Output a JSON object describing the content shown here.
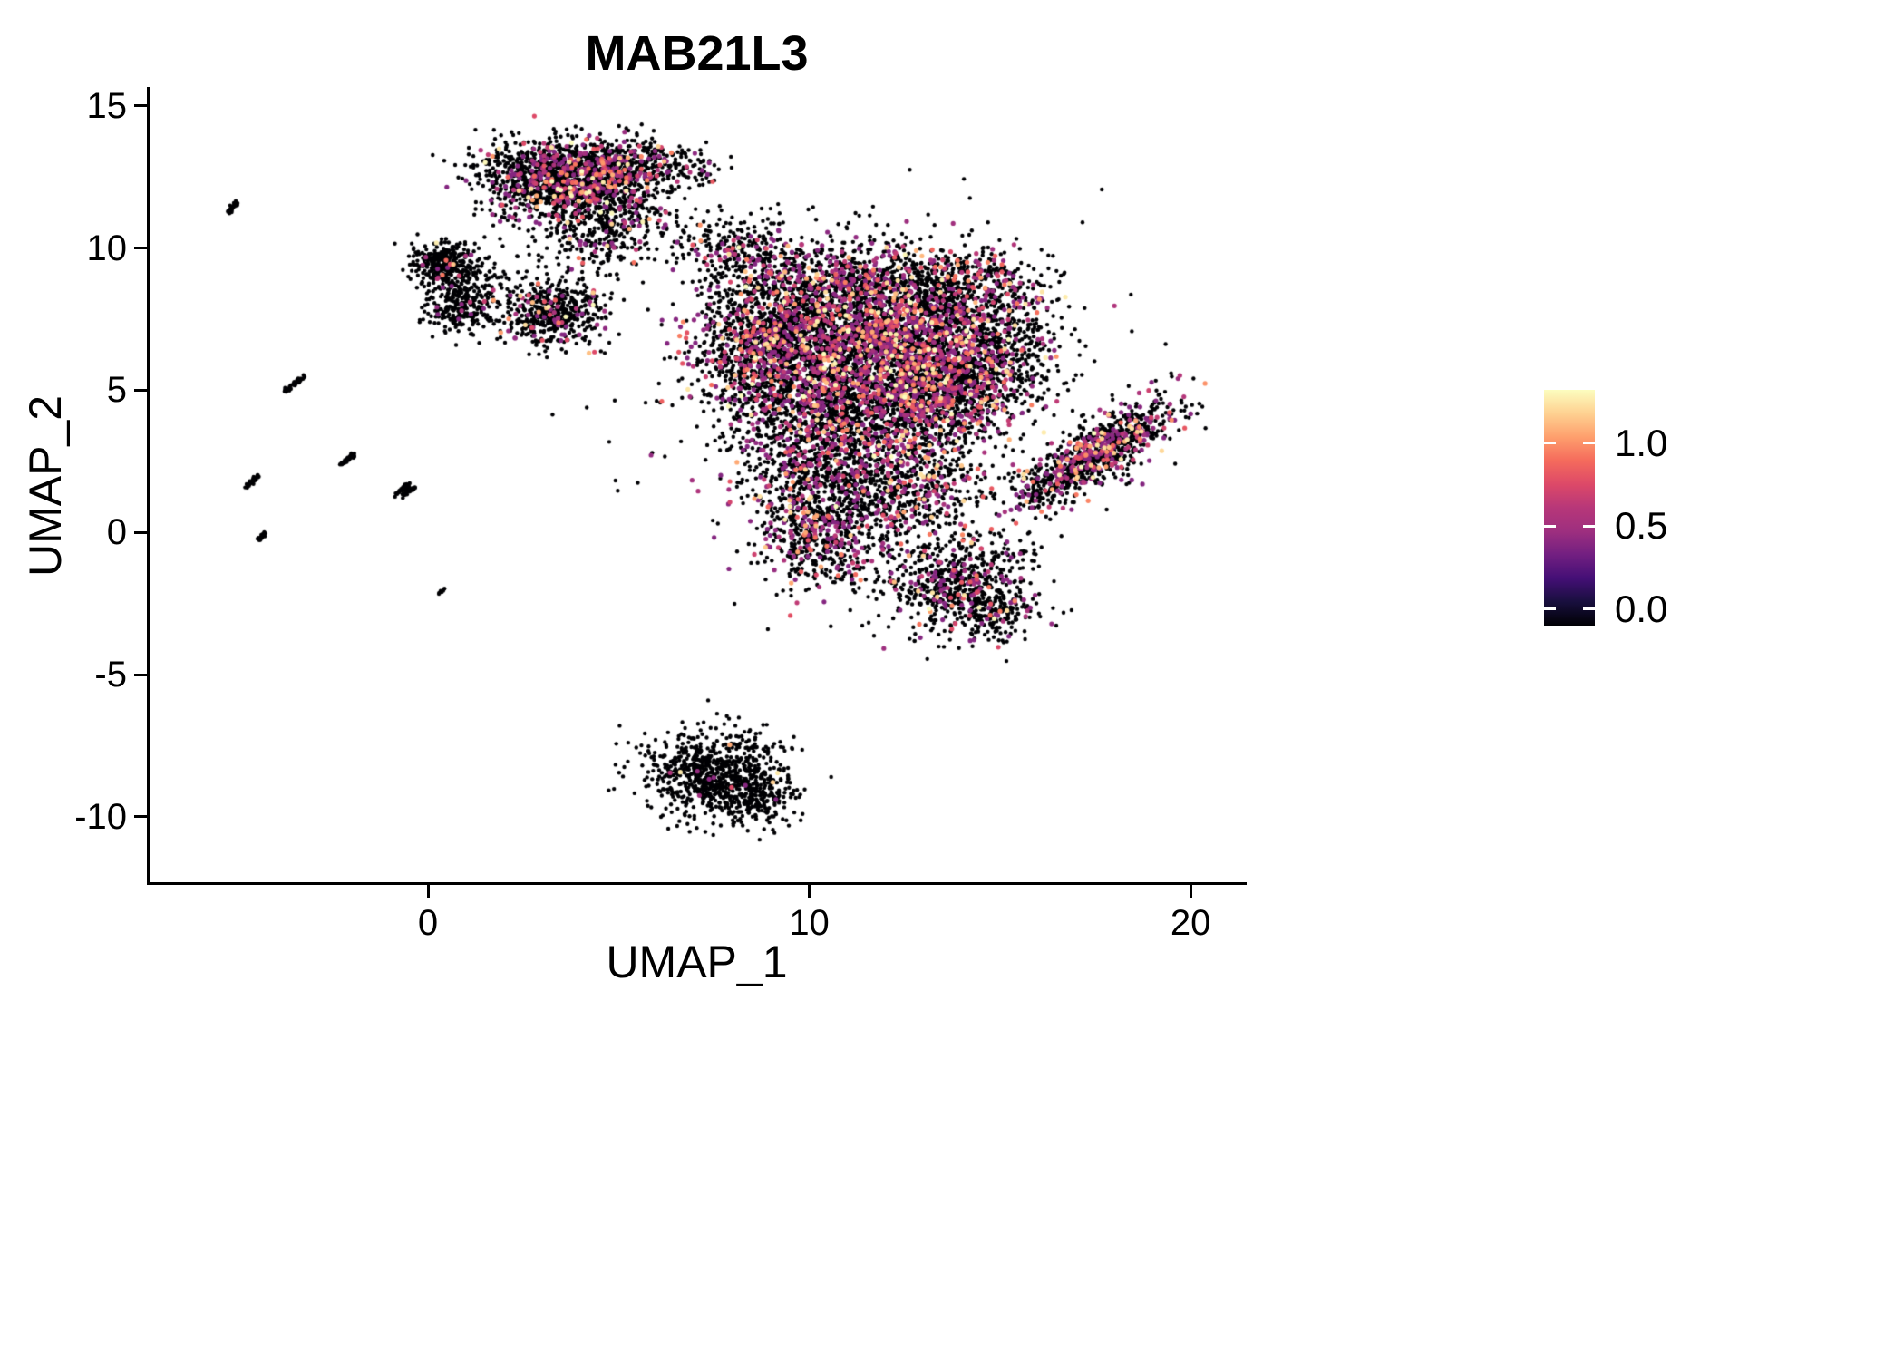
{
  "chart_data": {
    "type": "scatter",
    "title": "MAB21L3",
    "xlabel": "UMAP_1",
    "ylabel": "UMAP_2",
    "xlim": [
      -7.3,
      21.4
    ],
    "ylim": [
      -12.3,
      15.6
    ],
    "grid": false,
    "background": "#FFFFFF",
    "axis_color": "#000000",
    "x_ticks": [
      {
        "value": 0,
        "label": "0"
      },
      {
        "value": 10,
        "label": "10"
      },
      {
        "value": 20,
        "label": "20"
      }
    ],
    "y_ticks": [
      {
        "value": 15,
        "label": "15"
      },
      {
        "value": 10,
        "label": "10"
      },
      {
        "value": 5,
        "label": "5"
      },
      {
        "value": 0,
        "label": "0"
      },
      {
        "value": -5,
        "label": "-5"
      },
      {
        "value": -10,
        "label": "-10"
      }
    ],
    "colorbar": {
      "position": "right",
      "tick_labels": [
        "1.0",
        "0.5",
        "0.0"
      ],
      "tick_values": [
        1.0,
        0.5,
        0.0
      ],
      "value_range": [
        -0.1,
        1.32
      ],
      "gradient_low_to_high": [
        "#000004",
        "#180F3D",
        "#440F76",
        "#721F81",
        "#9E2F7F",
        "#B73779",
        "#DD4968",
        "#F56B5C",
        "#FE9F6D",
        "#FED191",
        "#FCFDBF"
      ]
    },
    "point_color_zero": "#000004",
    "point_radius_px": 2.2,
    "expr_point_radius_px": 2.6,
    "expr_value_base": 0.45,
    "expr_value_span": 0.9,
    "expr_value_power": 3,
    "clusters": [
      {
        "cx": 0.55,
        "cy": 9.3,
        "sx": 0.5,
        "sy": 0.45,
        "n": 280,
        "expr_frac": 0.04
      },
      {
        "cx": 0.9,
        "cy": 8.0,
        "sx": 0.5,
        "sy": 0.5,
        "n": 260,
        "expr_frac": 0.04
      },
      {
        "cx": 0.2,
        "cy": 9.6,
        "sx": 0.35,
        "sy": 0.25,
        "n": 80,
        "expr_frac": 0.06
      },
      {
        "cx": 2.1,
        "cy": 8.9,
        "sx": 0.5,
        "sy": 0.6,
        "n": 50,
        "expr_frac": 0.05
      },
      {
        "cx": 3.3,
        "cy": 7.7,
        "sx": 0.62,
        "sy": 0.62,
        "n": 500,
        "expr_frac": 0.12
      },
      {
        "cx": 3.6,
        "cy": 12.4,
        "sx": 1.05,
        "sy": 0.7,
        "n": 1500,
        "expr_frac": 0.22
      },
      {
        "cx": 5.5,
        "cy": 12.9,
        "sx": 0.75,
        "sy": 0.45,
        "n": 280,
        "expr_frac": 0.18
      },
      {
        "cx": 4.9,
        "cy": 11.2,
        "sx": 0.8,
        "sy": 0.7,
        "n": 250,
        "expr_frac": 0.12
      },
      {
        "cx": 4.3,
        "cy": 10.1,
        "sx": 0.6,
        "sy": 0.5,
        "n": 120,
        "expr_frac": 0.08
      },
      {
        "cx": 7.0,
        "cy": 12.7,
        "sx": 0.4,
        "sy": 0.35,
        "n": 40,
        "expr_frac": 0.1
      },
      {
        "cx": 7.2,
        "cy": 10.3,
        "sx": 0.55,
        "sy": 0.45,
        "n": 70,
        "expr_frac": 0.1
      },
      {
        "cx": 8.3,
        "cy": 9.9,
        "sx": 0.6,
        "sy": 0.5,
        "n": 150,
        "expr_frac": 0.2
      },
      {
        "cx": 8.9,
        "cy": 6.8,
        "sx": 0.95,
        "sy": 1.5,
        "n": 1300,
        "expr_frac": 0.22
      },
      {
        "cx": 10.9,
        "cy": 6.6,
        "sx": 1.25,
        "sy": 1.3,
        "n": 1500,
        "expr_frac": 0.3
      },
      {
        "cx": 12.7,
        "cy": 6.9,
        "sx": 1.0,
        "sy": 1.15,
        "n": 1100,
        "expr_frac": 0.34
      },
      {
        "cx": 11.4,
        "cy": 4.3,
        "sx": 1.5,
        "sy": 1.0,
        "n": 1100,
        "expr_frac": 0.25
      },
      {
        "cx": 13.7,
        "cy": 5.1,
        "sx": 0.9,
        "sy": 0.9,
        "n": 650,
        "expr_frac": 0.3
      },
      {
        "cx": 15.0,
        "cy": 6.6,
        "sx": 0.75,
        "sy": 1.1,
        "n": 550,
        "expr_frac": 0.25
      },
      {
        "cx": 14.2,
        "cy": 8.9,
        "sx": 0.9,
        "sy": 0.55,
        "n": 320,
        "expr_frac": 0.2
      },
      {
        "cx": 11.2,
        "cy": 8.8,
        "sx": 1.2,
        "sy": 0.75,
        "n": 550,
        "expr_frac": 0.28
      },
      {
        "cx": 9.8,
        "cy": 2.3,
        "sx": 0.85,
        "sy": 1.1,
        "n": 450,
        "expr_frac": 0.2
      },
      {
        "cx": 12.3,
        "cy": 1.6,
        "sx": 1.2,
        "sy": 0.95,
        "n": 750,
        "expr_frac": 0.25
      },
      {
        "cx": 10.3,
        "cy": -0.2,
        "sx": 0.8,
        "sy": 0.9,
        "n": 480,
        "expr_frac": 0.25
      },
      {
        "cx": 11.0,
        "cy": 5.5,
        "sx": 3.2,
        "sy": 3.2,
        "n": 420,
        "expr_frac": 0.18
      },
      {
        "cx": 13.8,
        "cy": -1.8,
        "sx": 1.0,
        "sy": 0.85,
        "n": 650,
        "expr_frac": 0.15
      },
      {
        "cx": 14.9,
        "cy": -2.9,
        "sx": 0.55,
        "sy": 0.5,
        "n": 150,
        "expr_frac": 0.12
      },
      {
        "cx": 17.7,
        "cy": 2.9,
        "sx": 1.15,
        "sy": 0.42,
        "n": 850,
        "expr_frac": 0.3,
        "angle": 42
      },
      {
        "cx": 16.1,
        "cy": 1.6,
        "sx": 0.5,
        "sy": 0.35,
        "n": 120,
        "expr_frac": 0.2,
        "angle": 42
      },
      {
        "cx": 7.5,
        "cy": -8.5,
        "sx": 0.9,
        "sy": 0.75,
        "n": 800,
        "expr_frac": 0.01
      },
      {
        "cx": 8.7,
        "cy": -9.3,
        "sx": 0.45,
        "sy": 0.5,
        "n": 180,
        "expr_frac": 0.01
      }
    ],
    "streaks": [
      {
        "x1": -5.25,
        "y1": 11.25,
        "x2": -5.0,
        "y2": 11.6,
        "n": 26
      },
      {
        "x1": -3.75,
        "y1": 4.95,
        "x2": -3.3,
        "y2": 5.45,
        "n": 48
      },
      {
        "x1": -4.75,
        "y1": 1.6,
        "x2": -4.45,
        "y2": 2.0,
        "n": 40
      },
      {
        "x1": -2.25,
        "y1": 2.4,
        "x2": -1.95,
        "y2": 2.75,
        "n": 36
      },
      {
        "x1": -0.85,
        "y1": 1.35,
        "x2": -0.5,
        "y2": 1.7,
        "n": 40
      },
      {
        "x1": -0.65,
        "y1": 1.3,
        "x2": -0.35,
        "y2": 1.6,
        "n": 24
      },
      {
        "x1": -4.45,
        "y1": -0.25,
        "x2": -4.25,
        "y2": 0.0,
        "n": 20
      },
      {
        "x1": 0.3,
        "y1": -2.15,
        "x2": 0.42,
        "y2": -2.0,
        "n": 7
      }
    ]
  }
}
